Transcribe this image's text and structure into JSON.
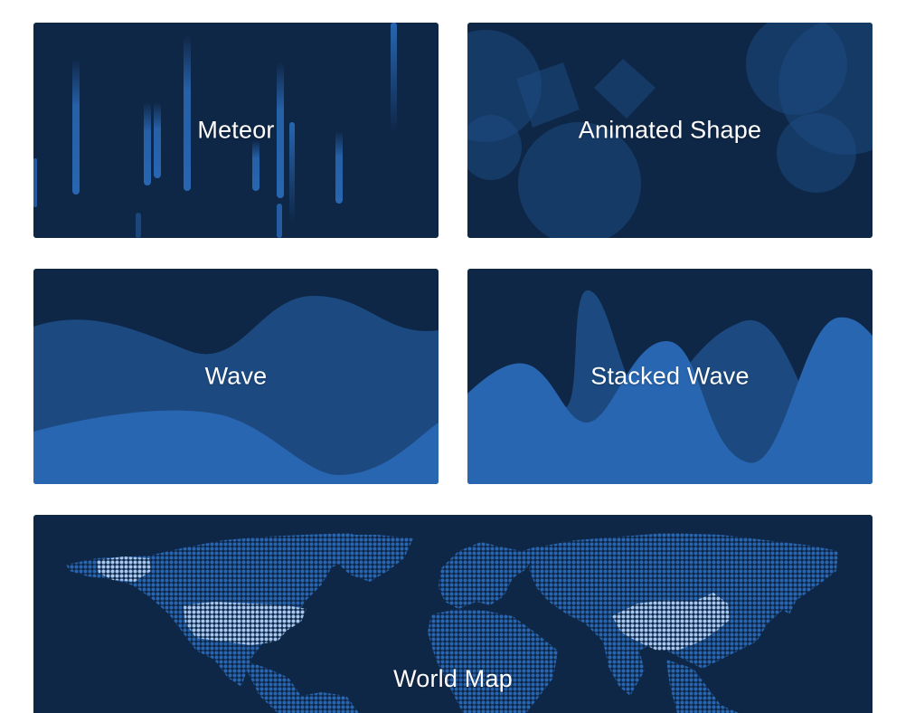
{
  "colors": {
    "card_bg": "#0f2747",
    "mid_blue": "#1c4a80",
    "bright_blue": "#2866b1",
    "highlight": "#a7c7ee"
  },
  "cards": [
    {
      "id": "meteor",
      "title": "Meteor"
    },
    {
      "id": "animated-shape",
      "title": "Animated Shape"
    },
    {
      "id": "wave",
      "title": "Wave"
    },
    {
      "id": "stacked-wave",
      "title": "Stacked Wave"
    },
    {
      "id": "world-map",
      "title": "World Map"
    }
  ]
}
